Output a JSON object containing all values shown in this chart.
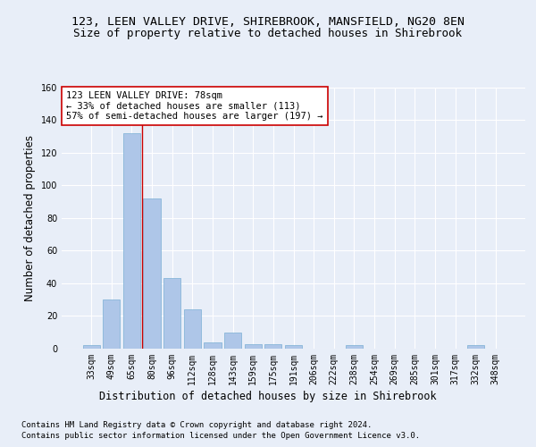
{
  "title_line1": "123, LEEN VALLEY DRIVE, SHIREBROOK, MANSFIELD, NG20 8EN",
  "title_line2": "Size of property relative to detached houses in Shirebrook",
  "xlabel": "Distribution of detached houses by size in Shirebrook",
  "ylabel": "Number of detached properties",
  "bar_labels": [
    "33sqm",
    "49sqm",
    "65sqm",
    "80sqm",
    "96sqm",
    "112sqm",
    "128sqm",
    "143sqm",
    "159sqm",
    "175sqm",
    "191sqm",
    "206sqm",
    "222sqm",
    "238sqm",
    "254sqm",
    "269sqm",
    "285sqm",
    "301sqm",
    "317sqm",
    "332sqm",
    "348sqm"
  ],
  "bar_values": [
    2,
    30,
    132,
    92,
    43,
    24,
    4,
    10,
    3,
    3,
    2,
    0,
    0,
    2,
    0,
    0,
    0,
    0,
    0,
    2,
    0
  ],
  "bar_color": "#aec6e8",
  "bar_edge_color": "#7aafd4",
  "vline_x": 2.5,
  "vline_color": "#cc0000",
  "annotation_text": "123 LEEN VALLEY DRIVE: 78sqm\n← 33% of detached houses are smaller (113)\n57% of semi-detached houses are larger (197) →",
  "annotation_box_color": "#ffffff",
  "annotation_box_edge": "#cc0000",
  "ylim": [
    0,
    160
  ],
  "yticks": [
    0,
    20,
    40,
    60,
    80,
    100,
    120,
    140,
    160
  ],
  "footer_line1": "Contains HM Land Registry data © Crown copyright and database right 2024.",
  "footer_line2": "Contains public sector information licensed under the Open Government Licence v3.0.",
  "bg_color": "#e8eef8",
  "plot_bg_color": "#e8eef8",
  "grid_color": "#ffffff",
  "title_fontsize": 9.5,
  "subtitle_fontsize": 9,
  "axis_label_fontsize": 8.5,
  "tick_fontsize": 7,
  "footer_fontsize": 6.5,
  "annot_fontsize": 7.5
}
